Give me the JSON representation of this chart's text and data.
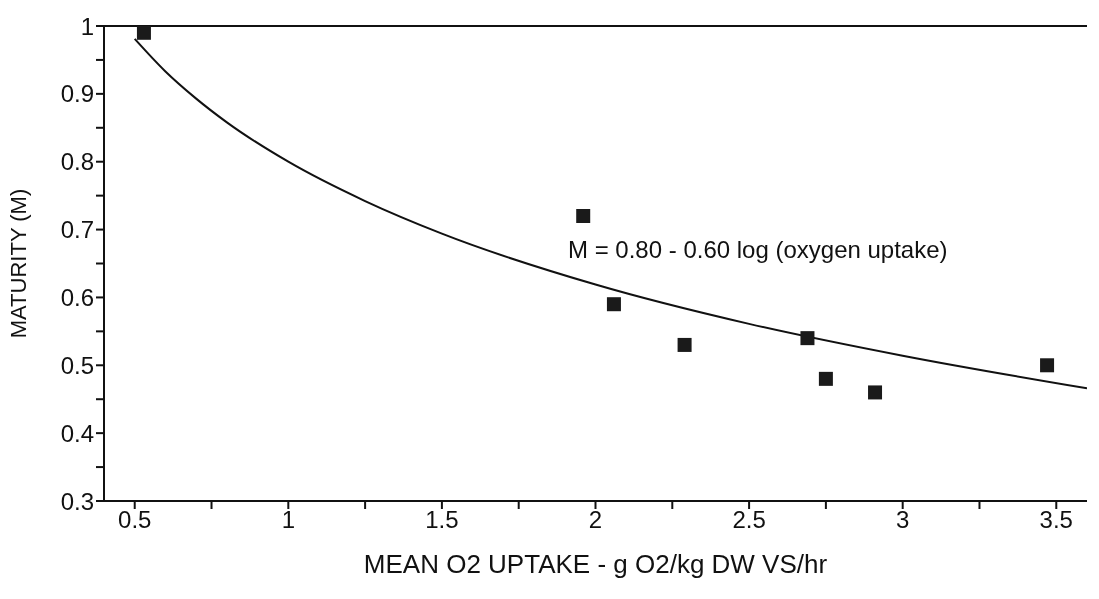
{
  "chart_data": {
    "type": "scatter",
    "xlabel": "MEAN O2 UPTAKE - g O2/kg DW VS/hr",
    "ylabel": "MATURITY (M)",
    "xlim": [
      0.4,
      3.6
    ],
    "xticks": [
      0.5,
      {
        "value": 0.75,
        "label": null
      },
      1,
      {
        "value": 1.25,
        "label": null
      },
      1.5,
      {
        "value": 1.75,
        "label": null
      },
      2,
      {
        "value": 2.25,
        "label": null
      },
      2.5,
      {
        "value": 2.75,
        "label": null
      },
      3,
      {
        "value": 3.25,
        "label": null
      },
      3.5
    ],
    "ylim": [
      0.3,
      1
    ],
    "yticks": [
      0.3,
      {
        "value": 0.35,
        "label": null
      },
      0.4,
      {
        "value": 0.45,
        "label": null
      },
      0.5,
      {
        "value": 0.55,
        "label": null
      },
      0.6,
      {
        "value": 0.65,
        "label": null
      },
      0.7,
      {
        "value": 0.75,
        "label": null
      },
      0.8,
      {
        "value": 0.85,
        "label": null
      },
      0.9,
      {
        "value": 0.95,
        "label": null
      },
      1
    ],
    "grid": false,
    "series": [
      {
        "color": "#1a1a1a",
        "marker": "square",
        "x": [
          0.53,
          1.96,
          2.06,
          2.29,
          2.69,
          2.75,
          2.91,
          3.47
        ],
        "values": [
          0.99,
          0.72,
          0.59,
          0.53,
          0.54,
          0.48,
          0.46,
          0.5
        ]
      },
      {
        "type": "line",
        "color": "#111111",
        "marker": "none",
        "line_style": "solid",
        "x": [
          0.5,
          0.6,
          0.7,
          0.8,
          1,
          1.25,
          1.5,
          2,
          2.5,
          3,
          3.6
        ],
        "values": [
          0.981,
          0.933,
          0.893,
          0.858,
          0.8,
          0.742,
          0.694,
          0.619,
          0.561,
          0.514,
          0.466
        ]
      }
    ],
    "annotations": [
      "M = 0.80 - 0.60 log (oxygen uptake)"
    ]
  }
}
